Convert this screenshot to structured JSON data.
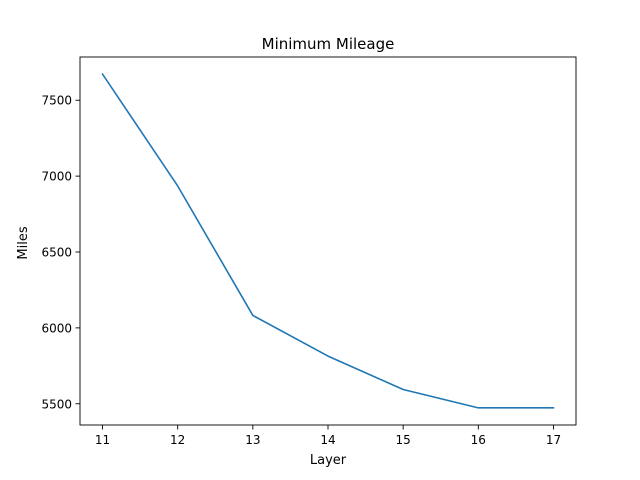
{
  "chart_data": {
    "type": "line",
    "title": "Minimum Mileage",
    "xlabel": "Layer",
    "ylabel": "Miles",
    "x": [
      11,
      12,
      13,
      14,
      15,
      16,
      17
    ],
    "series": [
      {
        "values": [
          7672,
          6935,
          6082,
          5814,
          5594,
          5473,
          5473
        ],
        "color": "#1f77b4"
      }
    ],
    "xlim": [
      10.7,
      17.3
    ],
    "ylim": [
      5360,
      7785
    ],
    "xticks": [
      11,
      12,
      13,
      14,
      15,
      16,
      17
    ],
    "yticks": [
      5500,
      6000,
      6500,
      7000,
      7500
    ],
    "grid": false,
    "legend": "none"
  }
}
